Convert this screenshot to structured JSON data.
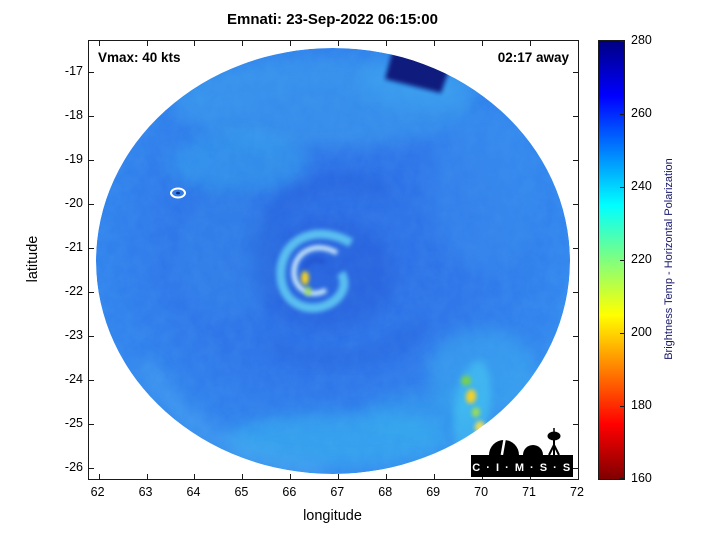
{
  "title": "Emnati: 23-Sep-2022 06:15:00",
  "annotations": {
    "vmax": "Vmax: 40 kts",
    "eta": "02:17 away"
  },
  "axes": {
    "xlabel": "longitude",
    "ylabel": "latitude"
  },
  "logo": {
    "text": "C · I · M · S · S"
  },
  "chart_data": {
    "type": "heatmap",
    "title": "Emnati: 23-Sep-2022 06:15:00",
    "xlabel": "longitude",
    "ylabel": "latitude",
    "xlim": [
      61.8,
      72
    ],
    "ylim_top_bottom": [
      -16.3,
      -26.25
    ],
    "xticks": [
      62,
      63,
      64,
      65,
      66,
      67,
      68,
      69,
      70,
      71,
      72
    ],
    "yticks": [
      -17,
      -18,
      -19,
      -20,
      -21,
      -22,
      -23,
      -24,
      -25,
      -26
    ],
    "grid": false,
    "annotations": [
      "Vmax: 40 kts",
      "02:17 away"
    ],
    "colorbar": {
      "label": "Brightness Temp - Horizontal Polarization",
      "min": 160,
      "max": 280,
      "ticks": [
        160,
        180,
        200,
        220,
        240,
        260,
        280
      ],
      "colormap": "jet reversed (low=dark red, high=dark blue)",
      "gradient_stops_top_to_bottom": [
        {
          "pos": 0,
          "color": "#000083"
        },
        {
          "pos": 12.5,
          "color": "#0000ff"
        },
        {
          "pos": 37.5,
          "color": "#00ffff"
        },
        {
          "pos": 62.5,
          "color": "#ffff00"
        },
        {
          "pos": 87.5,
          "color": "#ff0000"
        },
        {
          "pos": 100,
          "color": "#800000"
        }
      ]
    },
    "field": {
      "description": "Tropical-cyclone-centered microwave brightness temperature swath with circular footprint",
      "swath_center": {
        "lon": 66.9,
        "lat": -21.35
      },
      "swath_radius_deg": 5.0,
      "background_temp_K": 255,
      "storm_center": {
        "lon": 66.4,
        "lat": -21.5
      },
      "notable_features": [
        {
          "name": "eyewall-spiral",
          "lon": 66.4,
          "lat": -21.5,
          "approx_temp_K": 215
        },
        {
          "name": "warm-yellow-spot",
          "lon": 66.3,
          "lat": -21.7,
          "approx_temp_K": 200
        },
        {
          "name": "cold-navy-patch",
          "lon": 68.2,
          "lat": -16.6,
          "approx_temp_K": 278
        },
        {
          "name": "convective-cells",
          "lon": 69.8,
          "lat": -24.4,
          "approx_temp_K": 205
        },
        {
          "name": "white-contour-ring",
          "lon": 63.4,
          "lat": -19.7,
          "approx_temp_K": 252
        }
      ]
    }
  }
}
